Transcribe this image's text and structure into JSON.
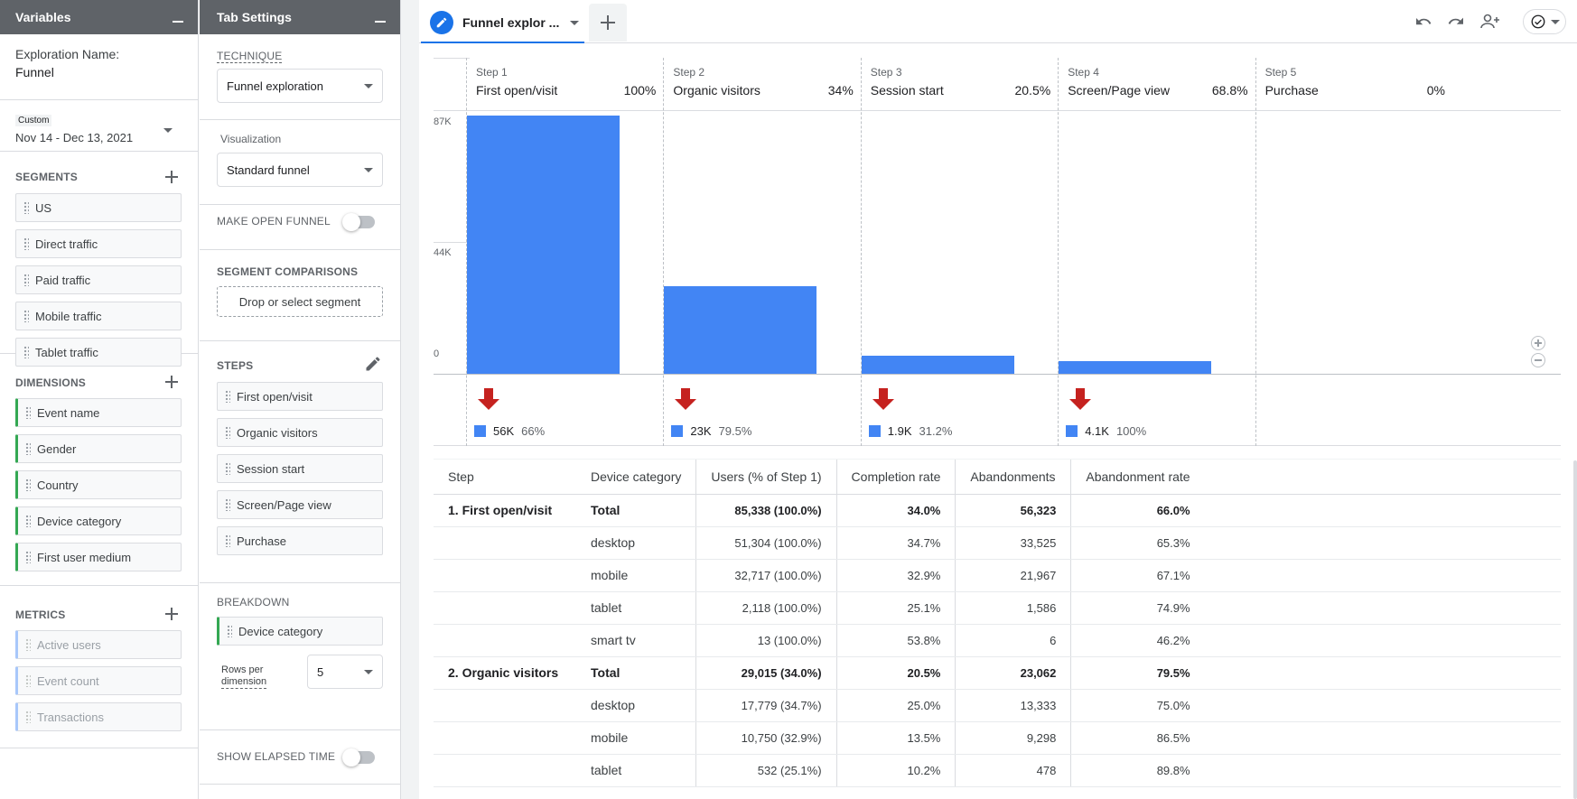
{
  "variables": {
    "title": "Variables",
    "exploration_name_label": "Exploration Name:",
    "exploration_name": "Funnel",
    "date_tag": "Custom",
    "date_range": "Nov 14 - Dec 13, 2021",
    "segments_label": "SEGMENTS",
    "segments": [
      "US",
      "Direct traffic",
      "Paid traffic",
      "Mobile traffic",
      "Tablet traffic"
    ],
    "dimensions_label": "DIMENSIONS",
    "dimensions": [
      "Event name",
      "Gender",
      "Country",
      "Device category",
      "First user medium"
    ],
    "metrics_label": "METRICS",
    "metrics": [
      "Active users",
      "Event count",
      "Transactions"
    ]
  },
  "tab_settings": {
    "title": "Tab Settings",
    "technique_label": "TECHNIQUE",
    "technique": "Funnel exploration",
    "visualization_label": "Visualization",
    "visualization": "Standard funnel",
    "open_funnel_label": "MAKE OPEN FUNNEL",
    "segment_comparisons_label": "SEGMENT COMPARISONS",
    "segment_drop_placeholder": "Drop or select segment",
    "steps_label": "STEPS",
    "steps": [
      "First open/visit",
      "Organic visitors",
      "Session start",
      "Screen/Page view",
      "Purchase"
    ],
    "breakdown_label": "BREAKDOWN",
    "breakdown": "Device category",
    "rows_per_dimension_label_1": "Rows per",
    "rows_per_dimension_label_2": "dimension",
    "rows_per_dimension": "5",
    "elapsed_label": "SHOW ELAPSED TIME"
  },
  "tabbar": {
    "tab_title": "Funnel explor ..."
  },
  "chart_data": {
    "type": "bar",
    "y_ticks": [
      "87K",
      "44K",
      "0"
    ],
    "ylim": [
      0,
      87000
    ],
    "steps": [
      {
        "step": "Step 1",
        "name": "First open/visit",
        "pct": "100%",
        "value": 85338,
        "drop": "56K",
        "drop_pct": "66%"
      },
      {
        "step": "Step 2",
        "name": "Organic visitors",
        "pct": "34%",
        "value": 29015,
        "drop": "23K",
        "drop_pct": "79.5%"
      },
      {
        "step": "Step 3",
        "name": "Session start",
        "pct": "20.5%",
        "value": 5953,
        "drop": "1.9K",
        "drop_pct": "31.2%"
      },
      {
        "step": "Step 4",
        "name": "Screen/Page view",
        "pct": "68.8%",
        "value": 4096,
        "drop": "4.1K",
        "drop_pct": "100%"
      },
      {
        "step": "Step 5",
        "name": "Purchase",
        "pct": "0%",
        "value": 0
      }
    ]
  },
  "table": {
    "headers": [
      "Step",
      "Device category",
      "Users (% of Step 1)",
      "Completion rate",
      "Abandonments",
      "Abandonment rate"
    ],
    "rows": [
      {
        "step": "1. First open/visit",
        "device": "Total",
        "users": "85,338 (100.0%)",
        "completion": "34.0%",
        "abandonments": "56,323",
        "abandon_rate": "66.0%",
        "total": true
      },
      {
        "step": "",
        "device": "desktop",
        "users": "51,304 (100.0%)",
        "completion": "34.7%",
        "abandonments": "33,525",
        "abandon_rate": "65.3%"
      },
      {
        "step": "",
        "device": "mobile",
        "users": "32,717 (100.0%)",
        "completion": "32.9%",
        "abandonments": "21,967",
        "abandon_rate": "67.1%"
      },
      {
        "step": "",
        "device": "tablet",
        "users": "2,118 (100.0%)",
        "completion": "25.1%",
        "abandonments": "1,586",
        "abandon_rate": "74.9%"
      },
      {
        "step": "",
        "device": "smart tv",
        "users": "13 (100.0%)",
        "completion": "53.8%",
        "abandonments": "6",
        "abandon_rate": "46.2%"
      },
      {
        "step": "2. Organic visitors",
        "device": "Total",
        "users": "29,015 (34.0%)",
        "completion": "20.5%",
        "abandonments": "23,062",
        "abandon_rate": "79.5%",
        "total": true
      },
      {
        "step": "",
        "device": "desktop",
        "users": "17,779 (34.7%)",
        "completion": "25.0%",
        "abandonments": "13,333",
        "abandon_rate": "75.0%"
      },
      {
        "step": "",
        "device": "mobile",
        "users": "10,750 (32.9%)",
        "completion": "13.5%",
        "abandonments": "9,298",
        "abandon_rate": "86.5%"
      },
      {
        "step": "",
        "device": "tablet",
        "users": "532 (25.1%)",
        "completion": "10.2%",
        "abandonments": "478",
        "abandon_rate": "89.8%"
      }
    ]
  },
  "colors": {
    "bar": "#4285f4",
    "drop_arrow": "#c5221f",
    "dimension_accent": "#34a853",
    "metric_accent": "#a8c7fa",
    "tab_accent": "#1a73e8"
  }
}
